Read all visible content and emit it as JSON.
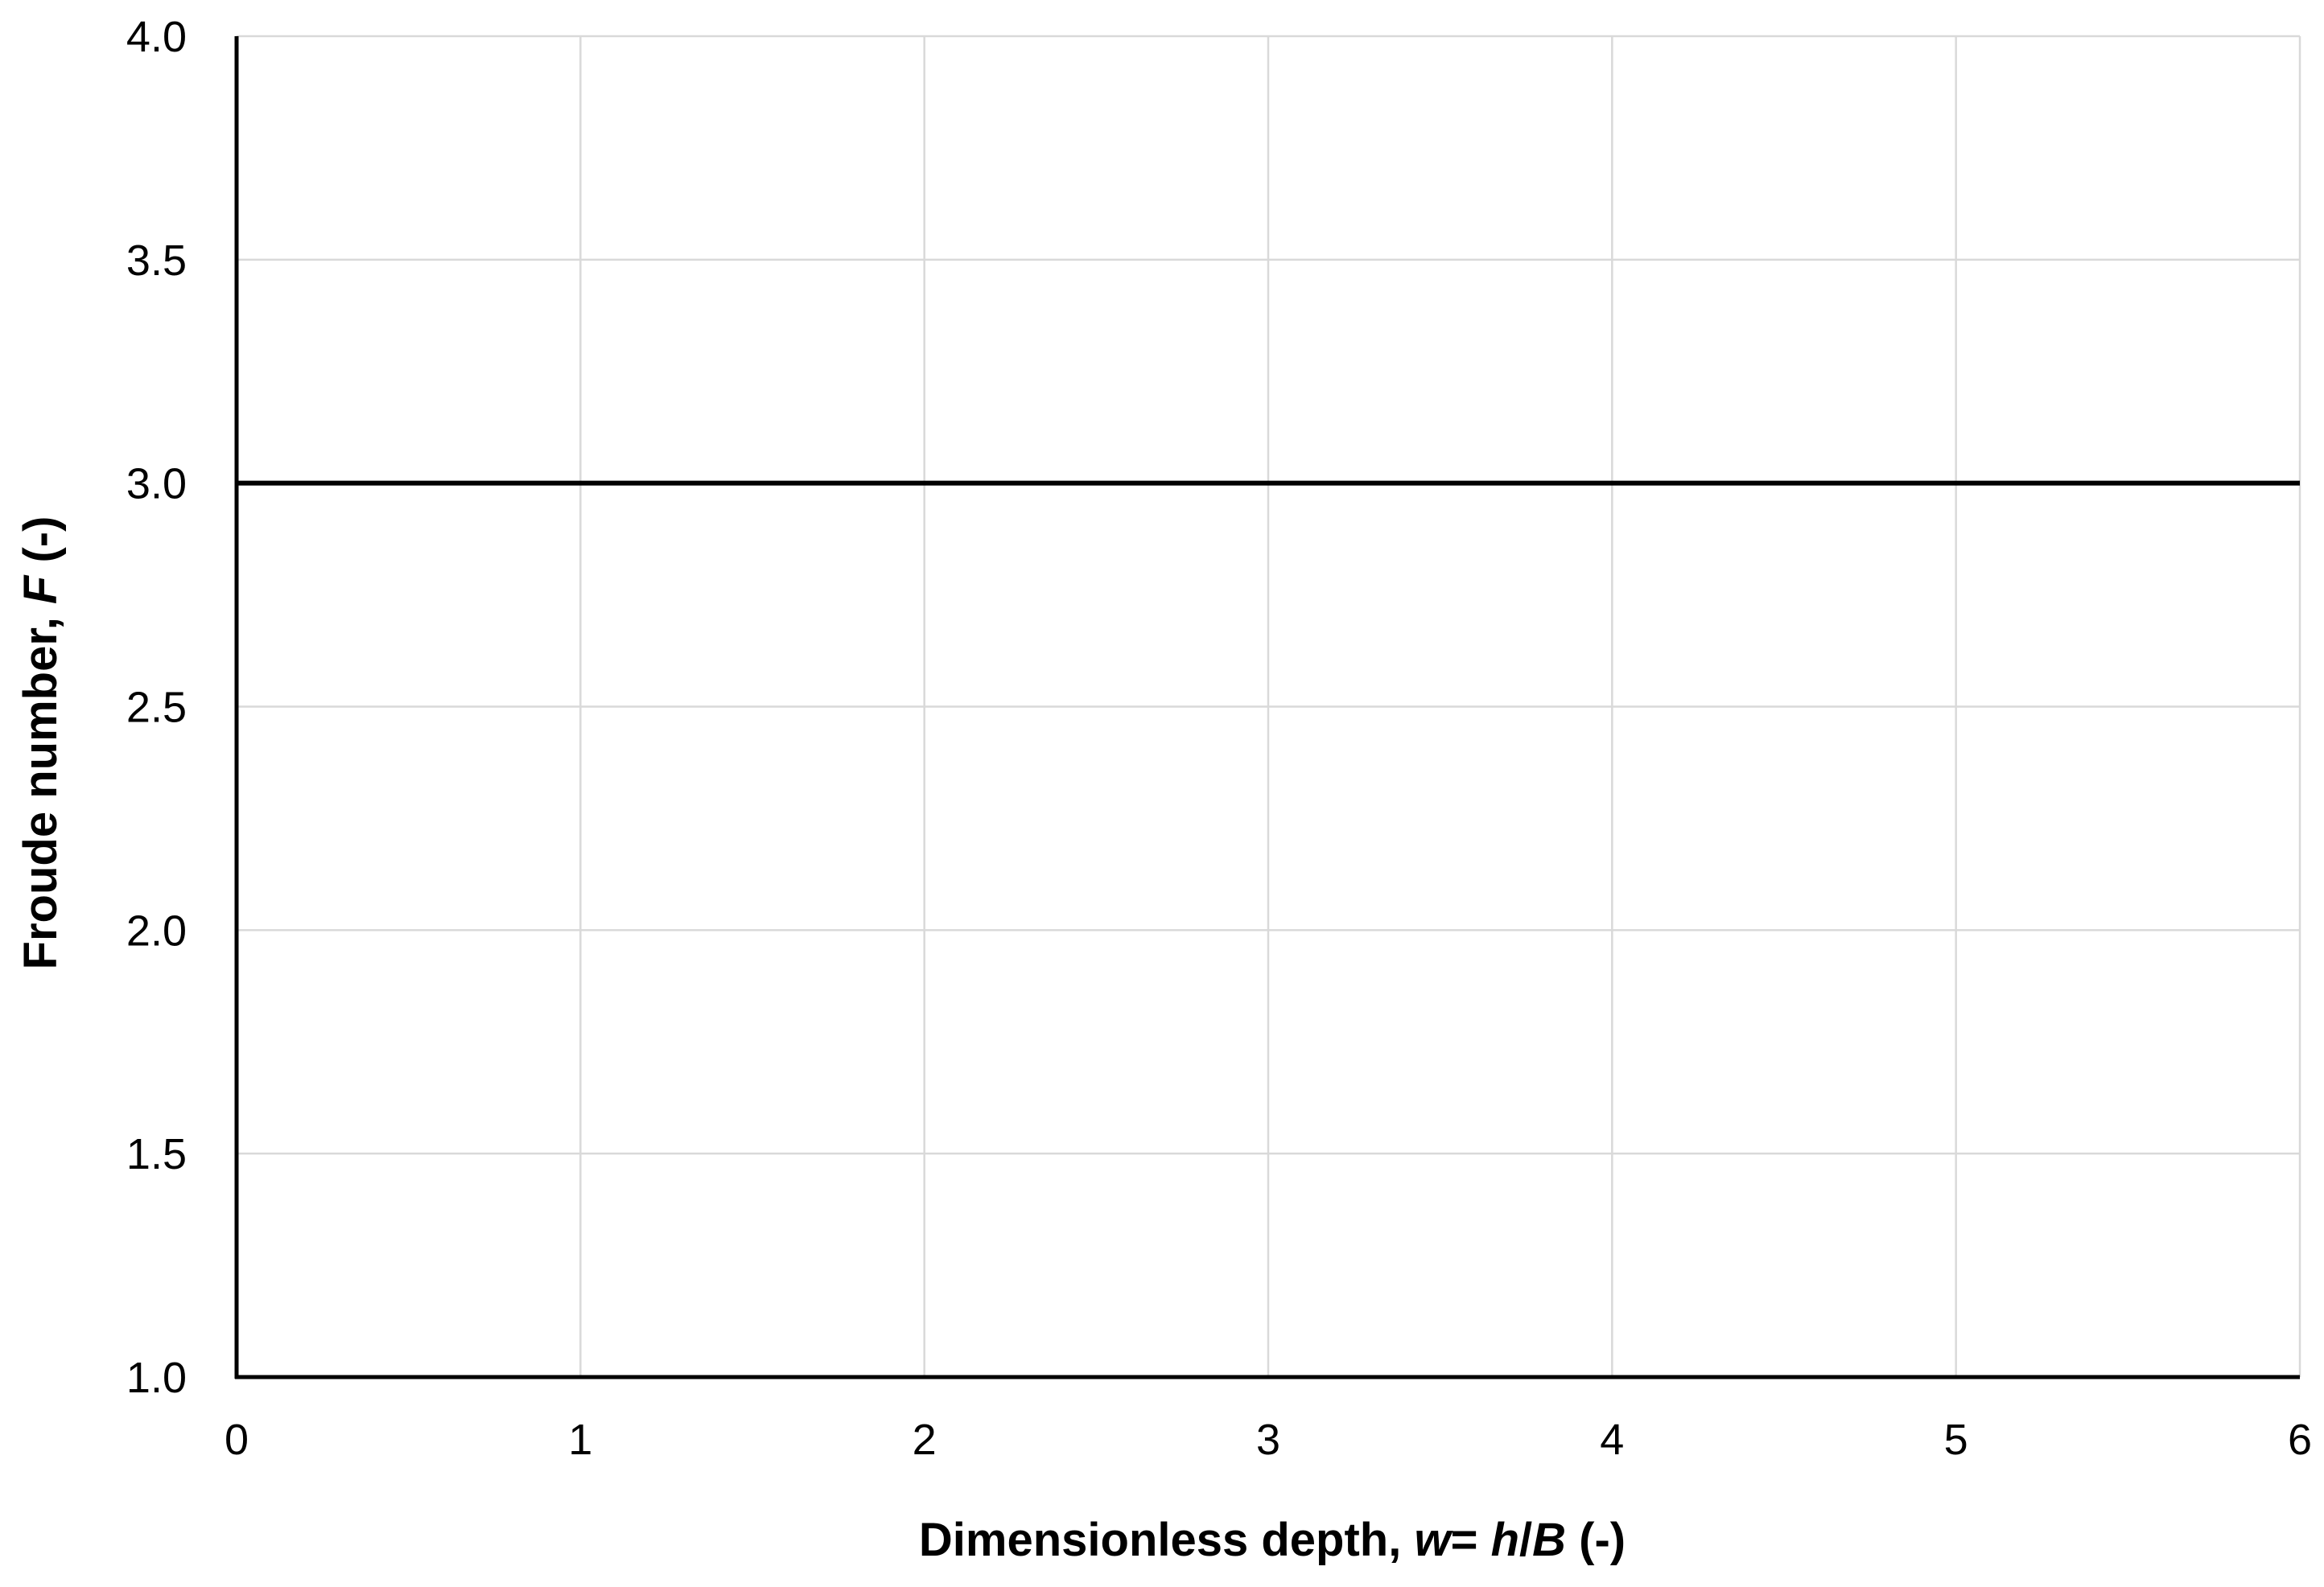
{
  "chart_data": {
    "type": "line",
    "title": "",
    "xlabel": {
      "parts": [
        {
          "text": "Dimensionless depth, ",
          "italic": false
        },
        {
          "text": "w",
          "italic": true
        },
        {
          "text": "= ",
          "italic": false
        },
        {
          "text": "h",
          "italic": true
        },
        {
          "text": "/",
          "italic": false
        },
        {
          "text": "B",
          "italic": true
        },
        {
          "text": " (-)",
          "italic": false
        }
      ]
    },
    "ylabel": {
      "parts": [
        {
          "text": "Froude number, ",
          "italic": false
        },
        {
          "text": "F",
          "italic": true
        },
        {
          "text": " (-)",
          "italic": false
        }
      ]
    },
    "xlim": [
      0,
      6
    ],
    "ylim": [
      1.0,
      4.0
    ],
    "x_ticks": [
      0,
      1,
      2,
      3,
      4,
      5,
      6
    ],
    "x_tick_labels": [
      "0",
      "1",
      "2",
      "3",
      "4",
      "5",
      "6"
    ],
    "y_ticks": [
      1.0,
      1.5,
      2.0,
      2.5,
      3.0,
      3.5,
      4.0
    ],
    "y_tick_labels": [
      "1.0",
      "1.5",
      "2.0",
      "2.5",
      "3.0",
      "3.5",
      "4.0"
    ],
    "grid": true,
    "legend": "none",
    "series": [
      {
        "x": [
          0,
          6
        ],
        "y": [
          3.0,
          3.0
        ],
        "color": "#000000"
      }
    ],
    "colors": {
      "axis": "#000000",
      "grid": "#d9d9d9",
      "background": "#ffffff"
    }
  }
}
